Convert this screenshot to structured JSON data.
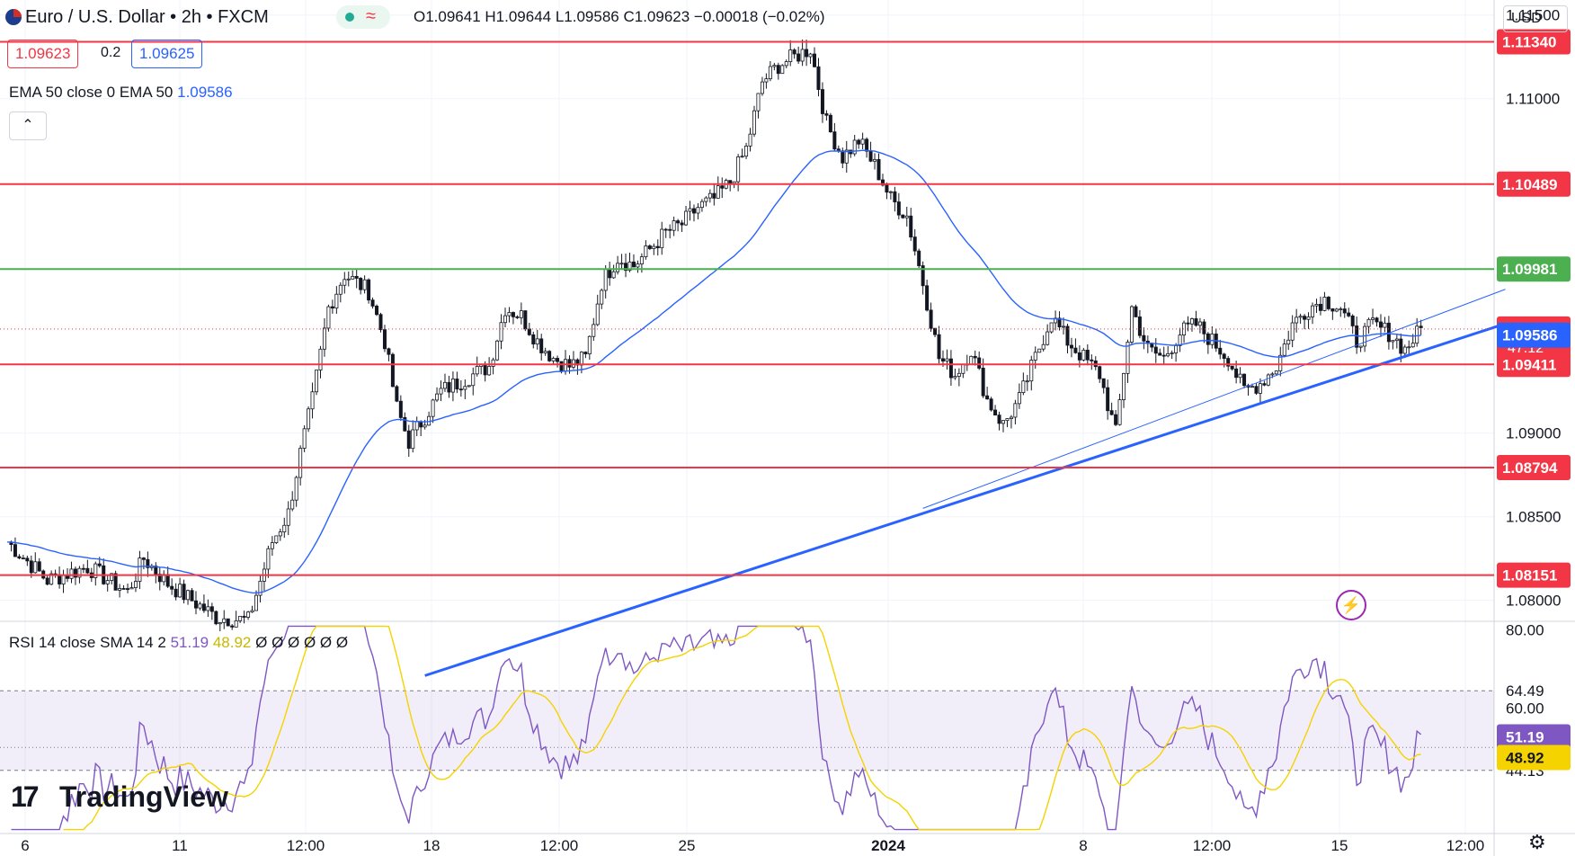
{
  "header": {
    "symbol": "Euro / U.S. Dollar • 2h • FXCM",
    "ohlc_label": "O1.09641 H1.09644 L1.09586 C1.09623 −0.00018 (−0.02%)",
    "live_badge": "≈",
    "bid": "1.09623",
    "spread": "0.2",
    "ask": "1.09625",
    "currency": "USD"
  },
  "legends": {
    "ema": "EMA 50 close 0 EMA 50",
    "ema_value": "1.09586",
    "rsi": "RSI 14 close SMA 14 2",
    "rsi_value": "51.19",
    "rsi_sma_value": "48.92",
    "rsi_extra": "Ø Ø Ø Ø Ø Ø"
  },
  "branding": {
    "logo_text": "TradingView"
  },
  "colors": {
    "up": "#22ab94",
    "down": "#f23645",
    "candle": "#131722",
    "ema": "#2962ff",
    "rsi": "#7e57c2",
    "rsi_sma": "#f5d300",
    "resistance": "#f23645",
    "support": "#4caf50",
    "trend": "#2962ff"
  },
  "chart_data": [
    {
      "type": "candlestick",
      "symbol": "EURUSD",
      "interval": "2h",
      "y_scale": "price",
      "ylim": [
        1.0788,
        1.1159
      ],
      "y_ticks": [
        1.08,
        1.085,
        1.09,
        1.11,
        1.115
      ],
      "x_tick_labels": [
        "6",
        "11",
        "12:00",
        "18",
        "12:00",
        "25",
        "2024",
        "8",
        "12:00",
        "15",
        "12:00"
      ],
      "horizontal_levels": [
        {
          "price": 1.1134,
          "label": "1.11340",
          "color": "#f23645"
        },
        {
          "price": 1.10489,
          "label": "1.10489",
          "color": "#f23645"
        },
        {
          "price": 1.09981,
          "label": "1.09981",
          "color": "#4caf50"
        },
        {
          "price": 1.09411,
          "label": "1.09411",
          "color": "#f23645"
        },
        {
          "price": 1.08794,
          "label": "1.08794",
          "color": "#f23645"
        },
        {
          "price": 1.08151,
          "label": "1.08151",
          "color": "#f23645"
        }
      ],
      "last_price": {
        "value": 1.09623,
        "label": "1.09623",
        "countdown": "47:12"
      },
      "ema_last": {
        "value": 1.09586,
        "label": "1.09586"
      },
      "close_path": [
        [
          0,
          1.0835
        ],
        [
          10,
          1.0812
        ],
        [
          20,
          1.082
        ],
        [
          30,
          1.0805
        ],
        [
          34,
          1.0825
        ],
        [
          40,
          1.081
        ],
        [
          52,
          1.079
        ],
        [
          60,
          1.0788
        ],
        [
          66,
          1.0835
        ],
        [
          70,
          1.0852
        ],
        [
          73,
          1.0888
        ],
        [
          76,
          1.092
        ],
        [
          80,
          1.0975
        ],
        [
          84,
          1.0995
        ],
        [
          90,
          1.0985
        ],
        [
          94,
          1.0955
        ],
        [
          97,
          1.0915
        ],
        [
          100,
          1.0895
        ],
        [
          104,
          1.091
        ],
        [
          108,
          1.0925
        ],
        [
          112,
          1.093
        ],
        [
          116,
          1.0935
        ],
        [
          120,
          1.094
        ],
        [
          124,
          1.0975
        ],
        [
          128,
          1.097
        ],
        [
          132,
          1.0955
        ],
        [
          136,
          1.0945
        ],
        [
          140,
          1.094
        ],
        [
          144,
          1.0945
        ],
        [
          148,
          1.099
        ],
        [
          152,
          1.1005
        ],
        [
          156,
          1.1
        ],
        [
          160,
          1.101
        ],
        [
          164,
          1.102
        ],
        [
          168,
          1.1025
        ],
        [
          172,
          1.1035
        ],
        [
          176,
          1.104
        ],
        [
          180,
          1.105
        ],
        [
          184,
          1.107
        ],
        [
          188,
          1.111
        ],
        [
          192,
          1.112
        ],
        [
          196,
          1.1125
        ],
        [
          200,
          1.113
        ],
        [
          204,
          1.1085
        ],
        [
          208,
          1.1065
        ],
        [
          212,
          1.1075
        ],
        [
          216,
          1.106
        ],
        [
          220,
          1.104
        ],
        [
          224,
          1.103
        ],
        [
          228,
          1.099
        ],
        [
          232,
          1.0945
        ],
        [
          236,
          1.0935
        ],
        [
          240,
          1.095
        ],
        [
          244,
          1.092
        ],
        [
          248,
          1.0905
        ],
        [
          252,
          1.092
        ],
        [
          256,
          1.0945
        ],
        [
          260,
          1.097
        ],
        [
          264,
          1.0955
        ],
        [
          268,
          1.0945
        ],
        [
          272,
          1.0935
        ],
        [
          276,
          1.09
        ],
        [
          280,
          1.0975
        ],
        [
          284,
          1.095
        ],
        [
          288,
          1.0945
        ],
        [
          292,
          1.096
        ],
        [
          296,
          1.0965
        ],
        [
          300,
          1.0955
        ],
        [
          304,
          1.0945
        ],
        [
          308,
          1.0925
        ],
        [
          312,
          1.093
        ],
        [
          316,
          1.094
        ],
        [
          320,
          1.0965
        ],
        [
          324,
          1.0975
        ],
        [
          328,
          1.098
        ],
        [
          332,
          1.0975
        ],
        [
          336,
          1.0955
        ],
        [
          340,
          1.0965
        ],
        [
          344,
          1.096
        ],
        [
          348,
          1.095
        ],
        [
          352,
          1.0962
        ]
      ],
      "n_bars": 352,
      "trendlines": [
        {
          "from": [
            104,
            1.0755
          ],
          "to": [
            375,
            1.0967
          ],
          "width": 3
        },
        {
          "from": [
            228,
            1.0855
          ],
          "to": [
            373,
            1.0986
          ],
          "width": 1
        }
      ]
    },
    {
      "type": "line",
      "name": "RSI 14 close SMA 14 2",
      "ylim": [
        28,
        82
      ],
      "y_ticks": [
        80,
        60
      ],
      "band": [
        44.13,
        64.49
      ],
      "band_labels": [
        "64.49",
        "44.13"
      ],
      "last_rsi": {
        "value": 51.19,
        "label": "51.19"
      },
      "last_sma": {
        "value": 48.92,
        "label": "48.92"
      },
      "rsi_ticks_labels": [
        "80.00",
        "60.00"
      ]
    }
  ]
}
